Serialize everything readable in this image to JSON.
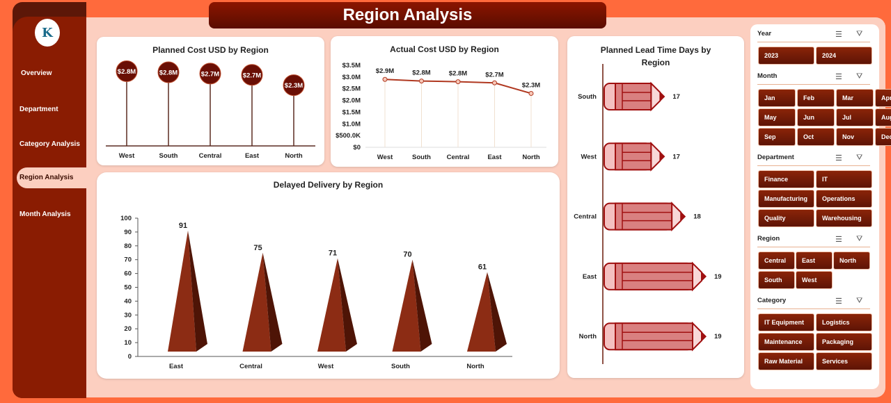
{
  "title": "Region Analysis",
  "nav": [
    {
      "label": "Overview"
    },
    {
      "label": "Department"
    },
    {
      "label": "Category Analysis"
    },
    {
      "label": "Region Analysis",
      "active": true
    },
    {
      "label": "Month Analysis"
    }
  ],
  "logo_text": "K",
  "colors": {
    "accent": "#8a1c02",
    "dark": "#5c1708",
    "background": "#ff6a3c",
    "panel": "#fccfc0"
  },
  "chart_data": [
    {
      "type": "lollipop",
      "title": "Planned Cost USD by Region",
      "categories": [
        "West",
        "South",
        "Central",
        "East",
        "North"
      ],
      "values": [
        2.83,
        2.79,
        2.74,
        2.69,
        2.3
      ],
      "labels": [
        "$2.8M",
        "$2.8M",
        "$2.7M",
        "$2.7M",
        "$2.3M"
      ],
      "unit": "USD millions"
    },
    {
      "type": "line",
      "title": "Actual Cost USD by Region",
      "categories": [
        "West",
        "South",
        "Central",
        "East",
        "North"
      ],
      "values": [
        2.9,
        2.83,
        2.8,
        2.75,
        2.3
      ],
      "labels": [
        "$2.9M",
        "$2.8M",
        "$2.8M",
        "$2.7M",
        "$2.3M"
      ],
      "yticks": [
        "$0",
        "$500.0K",
        "$1.0M",
        "$1.5M",
        "$2.0M",
        "$2.5M",
        "$3.0M",
        "$3.5M"
      ],
      "ylim": [
        0,
        3.5
      ]
    },
    {
      "type": "bar",
      "title": "Delayed Delivery by Region",
      "categories": [
        "East",
        "Central",
        "West",
        "South",
        "North"
      ],
      "values": [
        91,
        75,
        71,
        70,
        61
      ],
      "yticks": [
        "0",
        "10",
        "20",
        "30",
        "40",
        "50",
        "60",
        "70",
        "80",
        "90",
        "100"
      ],
      "ylim": [
        0,
        100
      ]
    },
    {
      "type": "bar",
      "orientation": "horizontal",
      "title": "Planned Lead Time Days by Region",
      "categories": [
        "South",
        "West",
        "Central",
        "East",
        "North"
      ],
      "values": [
        17,
        17,
        18,
        19,
        19
      ],
      "xlim": [
        14,
        20
      ]
    }
  ],
  "slicers": [
    {
      "title": "Year",
      "cols": 2,
      "items": [
        "2023",
        "2024"
      ]
    },
    {
      "title": "Month",
      "cols": 4,
      "items": [
        "Jan",
        "Feb",
        "Mar",
        "Apr",
        "May",
        "Jun",
        "Jul",
        "Aug",
        "Sep",
        "Oct",
        "Nov",
        "Dec"
      ]
    },
    {
      "title": "Department",
      "cols": 2,
      "items": [
        "Finance",
        "IT",
        "Manufacturing",
        "Operations",
        "Quality",
        "Warehousing"
      ]
    },
    {
      "title": "Region",
      "cols": 3,
      "items": [
        "Central",
        "East",
        "North",
        "South",
        "West"
      ]
    },
    {
      "title": "Category",
      "cols": 2,
      "items": [
        "IT Equipment",
        "Logistics",
        "Maintenance",
        "Packaging",
        "Raw Material",
        "Services"
      ]
    }
  ]
}
